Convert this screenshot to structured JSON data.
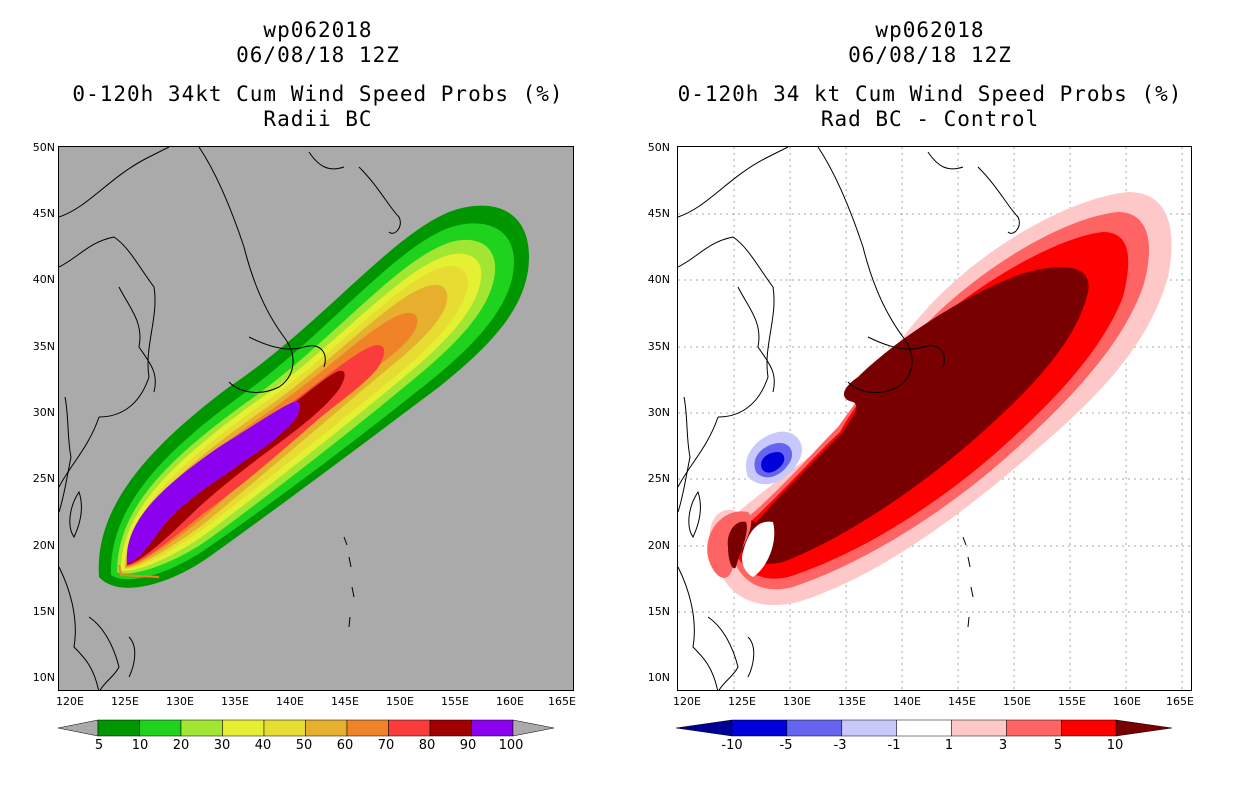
{
  "panels": [
    {
      "line1": "wp062018",
      "line2": "06/08/18 12Z",
      "line3": "0-120h 34kt Cum Wind Speed Probs (%)",
      "line4": "Radii BC",
      "background": "#aaaaaa",
      "colorbar": {
        "colors": [
          "#009600",
          "#1ed21e",
          "#a0e632",
          "#e6f032",
          "#e6dc32",
          "#e6af2d",
          "#f08228",
          "#fa3c3c",
          "#a00000",
          "#8c00f0"
        ],
        "end_color": "#aaaaaa",
        "labels": [
          "5",
          "10",
          "20",
          "30",
          "40",
          "50",
          "60",
          "70",
          "80",
          "90",
          "100"
        ]
      }
    },
    {
      "line1": "wp062018",
      "line2": "06/08/18 12Z",
      "line3": "0-120h 34 kt Cum Wind Speed Probs (%)",
      "line4": "Rad BC - Control",
      "background": "#ffffff",
      "colorbar": {
        "colors": [
          "#0000dc",
          "#6464f0",
          "#c8c8fa",
          "#ffffff",
          "#ffc8c8",
          "#ff6464",
          "#ff0000"
        ],
        "end_left": "#000096",
        "end_right": "#780000",
        "labels": [
          "-10",
          "-5",
          "-3",
          "-1",
          "1",
          "3",
          "5",
          "10"
        ]
      }
    }
  ],
  "lat_labels": [
    "50N",
    "45N",
    "40N",
    "35N",
    "30N",
    "25N",
    "20N",
    "15N",
    "10N"
  ],
  "lon_labels": [
    "120E",
    "125E",
    "130E",
    "135E",
    "140E",
    "145E",
    "150E",
    "155E",
    "160E",
    "165E"
  ]
}
